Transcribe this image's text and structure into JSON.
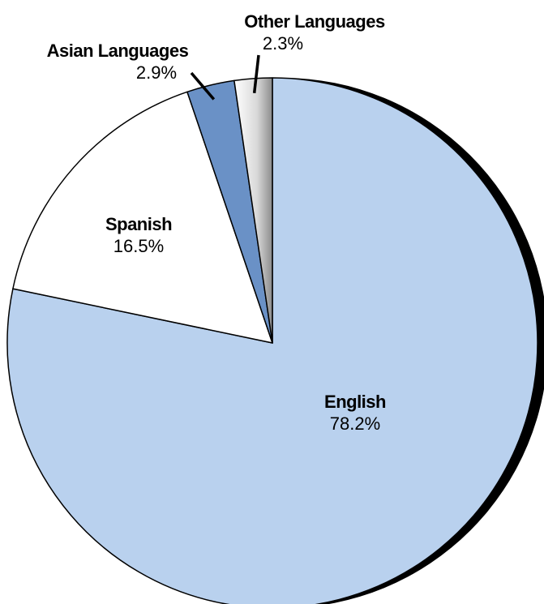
{
  "chart_data": {
    "type": "pie",
    "title": "",
    "categories": [
      "English",
      "Spanish",
      "Asian Languages",
      "Other Languages"
    ],
    "values": [
      78.2,
      16.5,
      2.9,
      2.3
    ],
    "value_labels": [
      "78.2%",
      "16.5%",
      "2.9%",
      "2.3%"
    ],
    "colors": [
      "#b9d1ee",
      "#ffffff",
      "#6a91c6",
      "#e6e6e6"
    ],
    "outline_color": "#000000",
    "rim_color": "#000000",
    "start_angle": "12 o'clock",
    "direction": "clockwise",
    "legend": "none"
  }
}
